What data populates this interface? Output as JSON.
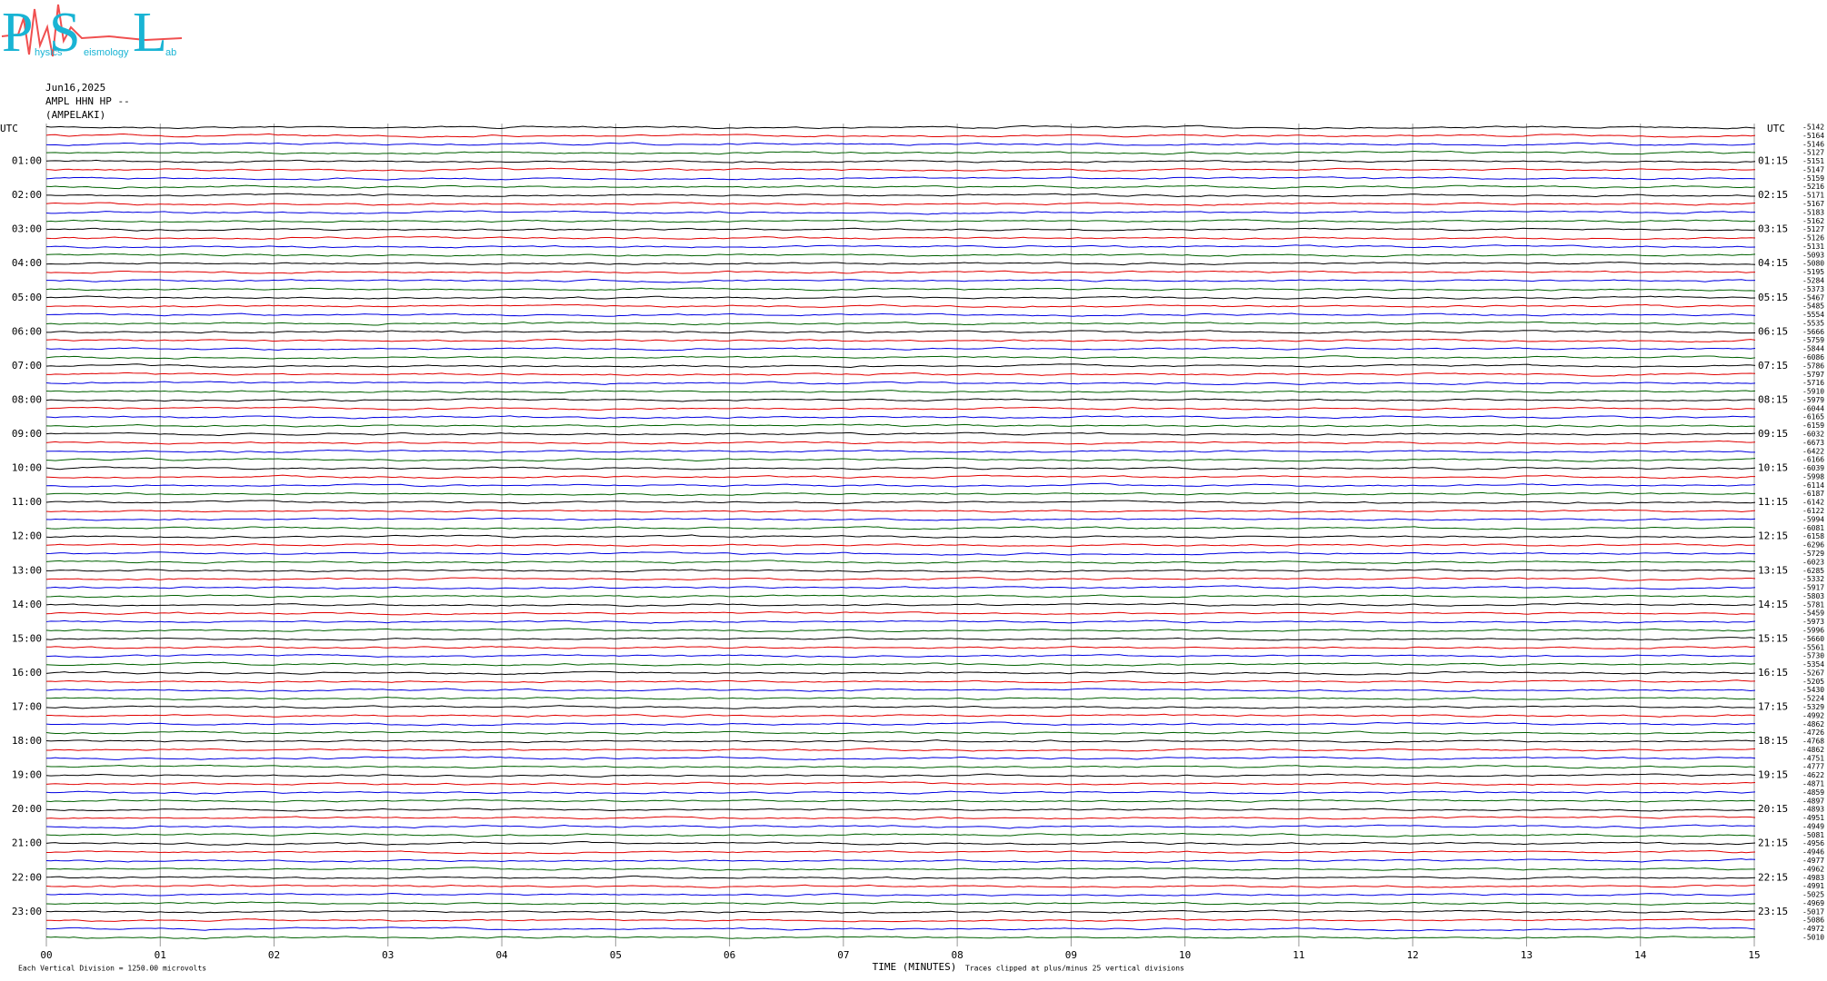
{
  "logo": {
    "big": [
      "P",
      "S",
      "L"
    ],
    "small": [
      "hysics",
      "eismology",
      "ab"
    ]
  },
  "chart_data": {
    "type": "helicorder",
    "date": "Jun16,2025",
    "station": "AMPL HHN HP --",
    "location": "(AMPELAKI)",
    "left_header": "UTC",
    "right_header": "UTC",
    "hour_labels": [
      "01:00",
      "02:00",
      "03:00",
      "04:00",
      "05:00",
      "06:00",
      "07:00",
      "08:00",
      "09:00",
      "10:00",
      "11:00",
      "12:00",
      "13:00",
      "14:00",
      "15:00",
      "16:00",
      "17:00",
      "18:00",
      "19:00",
      "20:00",
      "21:00",
      "22:00",
      "23:00"
    ],
    "right_hour_labels": [
      "01:15",
      "02:15",
      "03:15",
      "04:15",
      "05:15",
      "06:15",
      "07:15",
      "08:15",
      "09:15",
      "10:15",
      "11:15",
      "12:15",
      "13:15",
      "14:15",
      "15:15",
      "16:15",
      "17:15",
      "18:15",
      "19:15",
      "20:15",
      "21:15",
      "22:15",
      "23:15"
    ],
    "trace_colors": [
      "#000000",
      "#e00000",
      "#0000e0",
      "#006000"
    ],
    "trace_offsets": [
      -5142,
      -5164,
      -5146,
      -5127,
      -5151,
      -5147,
      -5159,
      -5216,
      -5171,
      -5167,
      -5183,
      -5162,
      -5127,
      -5126,
      -5131,
      -5093,
      -5080,
      -5195,
      -5284,
      -5373,
      -5467,
      -5485,
      -5554,
      -5535,
      -5666,
      -5759,
      -5844,
      -6086,
      -5786,
      -5797,
      -5716,
      -5910,
      -5979,
      -6044,
      -6165,
      -6159,
      -6032,
      -6673,
      -6422,
      -6166,
      -6039,
      -5998,
      -6114,
      -6187,
      -6142,
      -6122,
      -5994,
      -6081,
      -6158,
      -6296,
      -5729,
      -6023,
      -6285,
      -5332,
      -5917,
      -5803,
      -5781,
      -5459,
      -5973,
      -5996,
      -5660,
      -5561,
      -5730,
      -5354,
      -5267,
      -5205,
      -5430,
      -5224,
      -5329,
      -4992,
      -4862,
      -4726,
      -4768,
      -4862,
      -4751,
      -4777,
      -4622,
      -4871,
      -4859,
      -4897,
      -4893,
      -4951,
      -4949,
      -5081,
      -4956,
      -4946,
      -4977,
      -4962,
      -4983,
      -4991,
      -5025,
      -4969,
      -5017,
      -5086,
      -4972,
      -5010
    ],
    "xlim": [
      0,
      15
    ],
    "xticks": [
      {
        "value": 0,
        "label": "00"
      },
      {
        "value": 1,
        "label": "01"
      },
      {
        "value": 2,
        "label": "02"
      },
      {
        "value": 3,
        "label": "03"
      },
      {
        "value": 4,
        "label": "04"
      },
      {
        "value": 5,
        "label": "05"
      },
      {
        "value": 6,
        "label": "06"
      },
      {
        "value": 7,
        "label": "07"
      },
      {
        "value": 8,
        "label": "08"
      },
      {
        "value": 9,
        "label": "09"
      },
      {
        "value": 10,
        "label": "10"
      },
      {
        "value": 11,
        "label": "11"
      },
      {
        "value": 12,
        "label": "12"
      },
      {
        "value": 13,
        "label": "13"
      },
      {
        "value": 14,
        "label": "14"
      },
      {
        "value": 15,
        "label": "15"
      }
    ],
    "xlabel": "TIME (MINUTES)",
    "scale_note": "Each Vertical Division = 1250.00 microvolts",
    "clip_note": "Traces clipped at plus/minus 25 vertical divisions"
  }
}
